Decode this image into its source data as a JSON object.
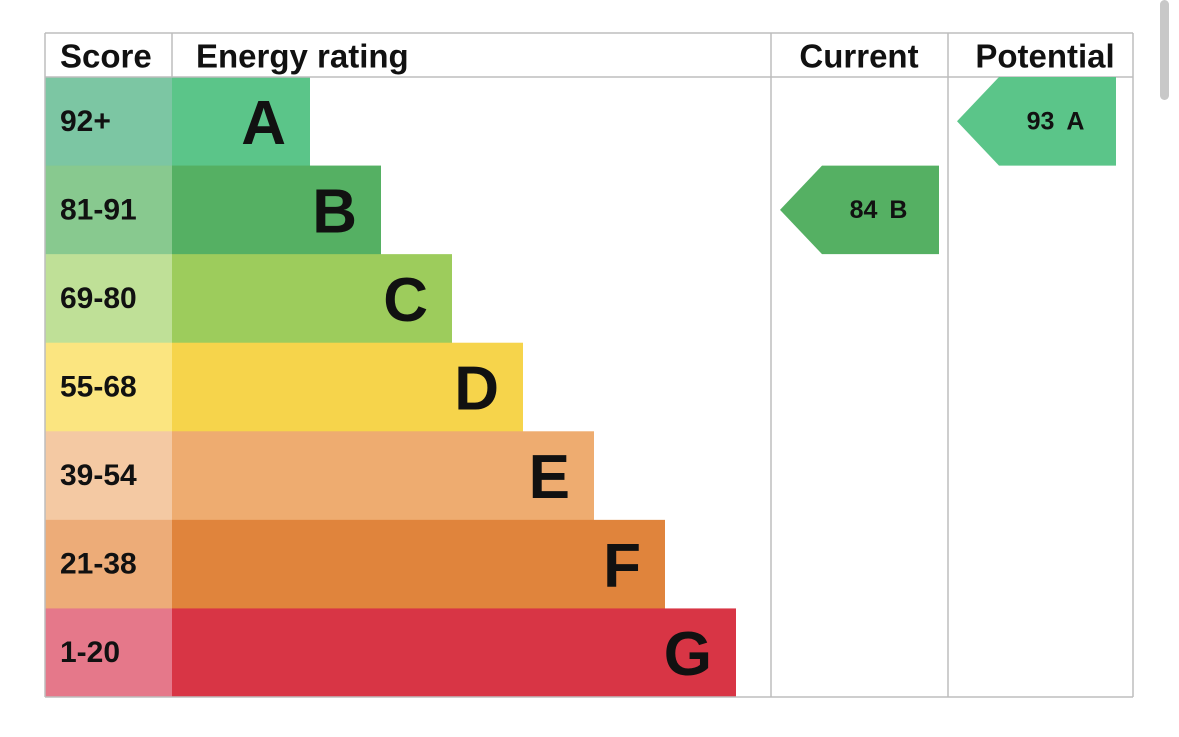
{
  "headers": [
    "Score",
    "Energy rating",
    "Current",
    "Potential"
  ],
  "bands": [
    {
      "score": "92+",
      "rating": "A",
      "color": "#5bc589",
      "score_color": "#7cc6a3"
    },
    {
      "score": "81-91",
      "rating": "B",
      "color": "#55b063",
      "score_color": "#88c98f"
    },
    {
      "score": "69-80",
      "rating": "C",
      "color": "#9dcc5c",
      "score_color": "#bfe097"
    },
    {
      "score": "55-68",
      "rating": "D",
      "color": "#f6d44b",
      "score_color": "#fbe580"
    },
    {
      "score": "39-54",
      "rating": "E",
      "color": "#eeac70",
      "score_color": "#f4c9a3"
    },
    {
      "score": "21-38",
      "rating": "F",
      "color": "#e0843c",
      "score_color": "#edac78"
    },
    {
      "score": "1-20",
      "rating": "G",
      "color": "#d83545",
      "score_color": "#e5788a"
    }
  ],
  "current": {
    "value": 84,
    "rating": "B"
  },
  "potential": {
    "value": 93,
    "rating": "A"
  }
}
